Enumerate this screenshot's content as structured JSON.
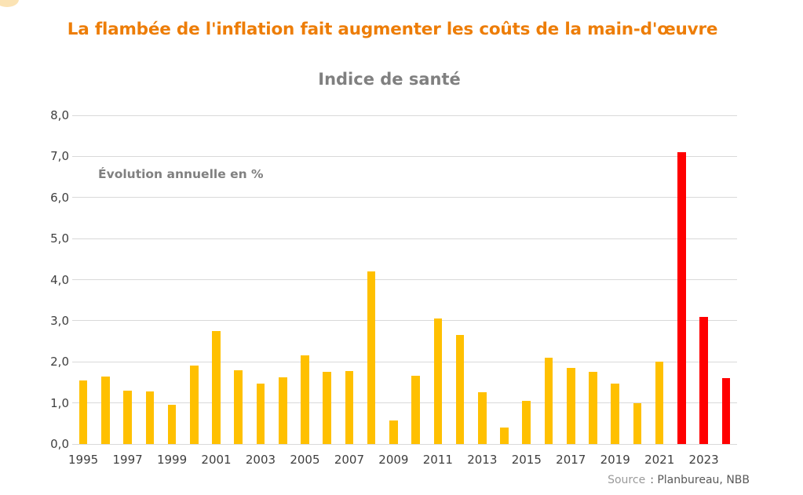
{
  "header": {
    "title": "La flambée de l'inflation fait augmenter les coûts de la main-d'œuvre"
  },
  "chart_data": {
    "type": "bar",
    "title": "Indice de santé",
    "annotation": "Évolution annuelle en %",
    "xlabel": "",
    "ylabel": "Évolution annuelle en %",
    "ylim": [
      0,
      8
    ],
    "ytick_step": 1,
    "grid": true,
    "legend": false,
    "categories": [
      1995,
      1996,
      1997,
      1998,
      1999,
      2000,
      2001,
      2002,
      2003,
      2004,
      2005,
      2006,
      2007,
      2008,
      2009,
      2010,
      2011,
      2012,
      2013,
      2014,
      2015,
      2016,
      2017,
      2018,
      2019,
      2020,
      2021,
      2022,
      2023,
      2024
    ],
    "values": [
      1.55,
      1.65,
      1.3,
      1.28,
      0.95,
      1.9,
      2.75,
      1.8,
      1.47,
      1.63,
      2.15,
      1.75,
      1.77,
      4.2,
      0.58,
      1.67,
      3.05,
      2.65,
      1.26,
      0.4,
      1.05,
      2.1,
      1.85,
      1.75,
      1.47,
      1.0,
      2.0,
      7.1,
      3.1,
      1.6
    ],
    "highlight_years": [
      2022,
      2023,
      2024
    ],
    "colors": {
      "bar": "#FFC000",
      "highlight": "#FF0000",
      "gridline": "#D9D9D9"
    },
    "ytick_labels": [
      "0,0",
      "1,0",
      "2,0",
      "3,0",
      "4,0",
      "5,0",
      "6,0",
      "7,0",
      "8,0"
    ],
    "xtick_labels": [
      "1995",
      "1997",
      "1999",
      "2001",
      "2003",
      "2005",
      "2007",
      "2009",
      "2011",
      "2013",
      "2015",
      "2017",
      "2019",
      "2021",
      "2023"
    ]
  },
  "footer": {
    "source_label": "Source",
    "source_value": ": Planbureau, NBB"
  }
}
